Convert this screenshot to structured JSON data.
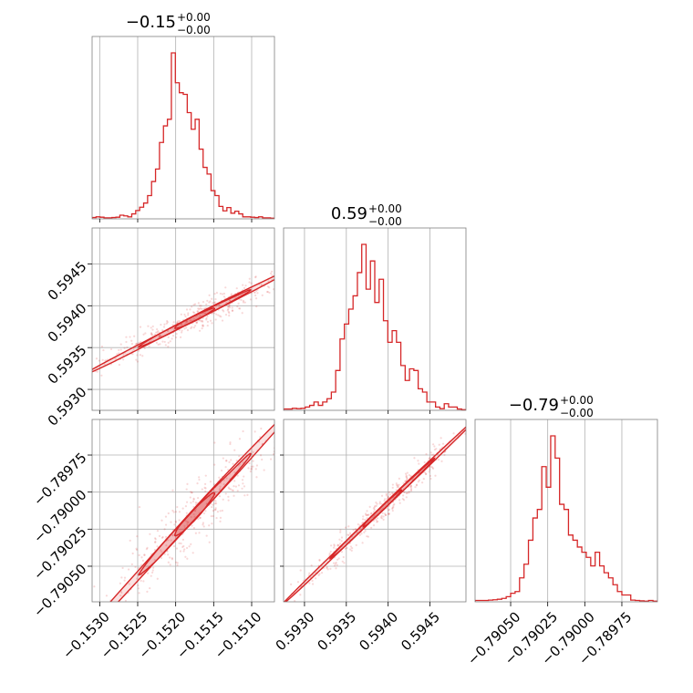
{
  "chart_data": {
    "type": "corner",
    "color": "#d62728",
    "grid": true,
    "parameters": [
      {
        "title": {
          "main": "−0.15",
          "sup": "+0.00",
          "sub": "−0.00"
        },
        "range": [
          -0.1531,
          -0.1507
        ],
        "ticks": [
          {
            "value": -0.153,
            "label": "−0.1530"
          },
          {
            "value": -0.1525,
            "label": "−0.1525"
          },
          {
            "value": -0.152,
            "label": "−0.1520"
          },
          {
            "value": -0.1515,
            "label": "−0.1515"
          },
          {
            "value": -0.151,
            "label": "−0.1510"
          }
        ],
        "histogram": [
          0.008,
          0.012,
          0.01,
          0.006,
          0.006,
          0.008,
          0.01,
          0.022,
          0.018,
          0.012,
          0.03,
          0.05,
          0.07,
          0.095,
          0.14,
          0.225,
          0.3,
          0.46,
          0.56,
          0.6,
          1.0,
          0.82,
          0.76,
          0.75,
          0.64,
          0.54,
          0.6,
          0.42,
          0.31,
          0.27,
          0.17,
          0.14,
          0.075,
          0.048,
          0.068,
          0.034,
          0.046,
          0.03,
          0.012,
          0.012,
          0.01,
          0.008,
          0.012,
          0.006,
          0.006,
          0.004
        ]
      },
      {
        "title": {
          "main": "0.59",
          "sup": "+0.00",
          "sub": "−0.00"
        },
        "range": [
          0.59275,
          0.59493
        ],
        "ticks": [
          {
            "value": 0.593,
            "label": "0.5930"
          },
          {
            "value": 0.5935,
            "label": "0.5935"
          },
          {
            "value": 0.594,
            "label": "0.5940"
          },
          {
            "value": 0.5945,
            "label": "0.5945"
          }
        ],
        "histogram": [
          0.008,
          0.008,
          0.012,
          0.01,
          0.012,
          0.02,
          0.03,
          0.05,
          0.03,
          0.05,
          0.07,
          0.11,
          0.24,
          0.43,
          0.52,
          0.61,
          0.69,
          0.83,
          1.0,
          0.73,
          0.9,
          0.65,
          0.79,
          0.54,
          0.41,
          0.48,
          0.41,
          0.27,
          0.18,
          0.25,
          0.24,
          0.13,
          0.11,
          0.05,
          0.05,
          0.02,
          0.01,
          0.04,
          0.02,
          0.02,
          0.008,
          0.004
        ]
      },
      {
        "title": {
          "main": "−0.79",
          "sup": "+0.00",
          "sub": "−0.00"
        },
        "range": [
          -0.79074,
          -0.78951
        ],
        "ticks": [
          {
            "value": -0.7905,
            "label": "−0.79050"
          },
          {
            "value": -0.79025,
            "label": "−0.79025"
          },
          {
            "value": -0.79,
            "label": "−0.79000"
          },
          {
            "value": -0.78975,
            "label": "−0.78975"
          }
        ],
        "histogram": [
          0.008,
          0.008,
          0.008,
          0.01,
          0.012,
          0.015,
          0.02,
          0.03,
          0.05,
          0.06,
          0.14,
          0.22,
          0.36,
          0.49,
          0.54,
          0.79,
          0.67,
          0.97,
          0.84,
          0.57,
          0.54,
          0.39,
          0.36,
          0.32,
          0.29,
          0.26,
          0.21,
          0.29,
          0.21,
          0.17,
          0.14,
          0.1,
          0.06,
          0.04,
          0.04,
          0.01,
          0.008,
          0.006,
          0.004,
          0.008,
          0.004
        ]
      }
    ],
    "contours": [
      {
        "x_param": 0,
        "y_param": 1,
        "center": [
          -0.15175,
          0.59385
        ],
        "direction": [
          0.00054,
          0.00025
        ],
        "width": [
          2.2e-05,
          1e-05
        ],
        "levels": [
          {
            "scale": 1.0,
            "length": 2.75
          },
          {
            "scale": 0.62,
            "length": 2.2
          },
          {
            "scale": 0.32,
            "length": 1.5
          }
        ]
      },
      {
        "x_param": 0,
        "y_param": 2,
        "center": [
          -0.15175,
          -0.79015
        ],
        "direction": [
          0.00054,
          0.0003
        ],
        "width": [
          2.2e-05,
          1.2e-05
        ],
        "levels": [
          {
            "scale": 1.0,
            "length": 2.75
          },
          {
            "scale": 0.62,
            "length": 2.2
          },
          {
            "scale": 0.32,
            "length": 1.5
          }
        ]
      },
      {
        "x_param": 1,
        "y_param": 2,
        "center": [
          0.59393,
          -0.79011
        ],
        "direction": [
          0.00048,
          0.00026
        ],
        "width": [
          1e-05,
          5e-06
        ],
        "levels": [
          {
            "scale": 1.0,
            "length": 2.55
          },
          {
            "scale": 0.62,
            "length": 2.1
          },
          {
            "scale": 0.32,
            "length": 1.5
          }
        ]
      }
    ]
  }
}
